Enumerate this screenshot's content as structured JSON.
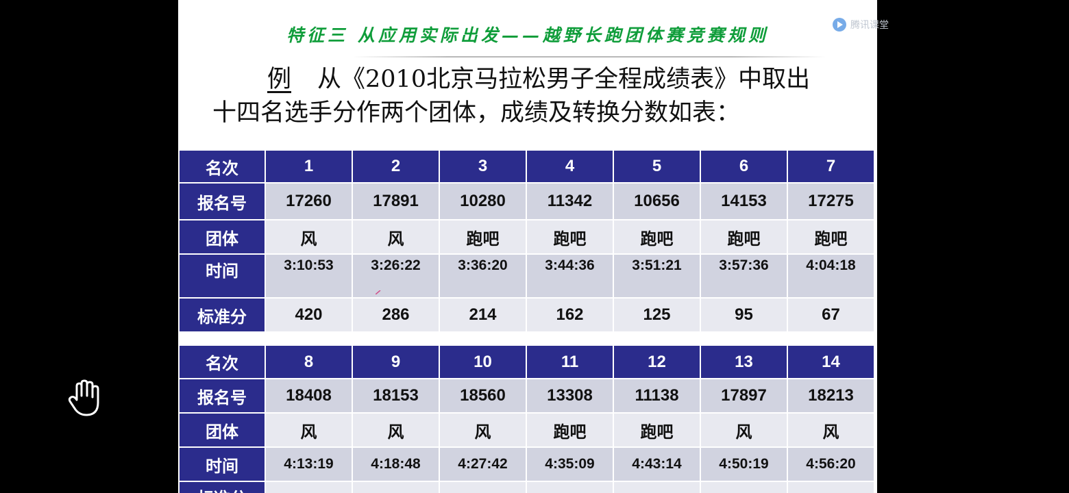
{
  "slide": {
    "heading": "特征三 从应用实际出发——越野长跑团体赛竞赛规则",
    "example_label": "例",
    "intro_line1": "从《2010北京马拉松男子全程成绩表》中取出",
    "intro_line2": "十四名选手分作两个团体，成绩及转换分数如表："
  },
  "watermark": {
    "text": "腾讯课堂",
    "icon": "play-logo-icon"
  },
  "overlay": {
    "hand_icon": "hand-icon",
    "accent_color": "#2b2c8c",
    "heading_color": "#0f9d3a"
  },
  "table1": {
    "header_labels": [
      "名次",
      "报名号",
      "团体",
      "时间",
      "标准分"
    ],
    "rank": [
      "1",
      "2",
      "3",
      "4",
      "5",
      "6",
      "7"
    ],
    "bib": [
      "17260",
      "17891",
      "10280",
      "11342",
      "10656",
      "14153",
      "17275"
    ],
    "team": [
      "风",
      "风",
      "跑吧",
      "跑吧",
      "跑吧",
      "跑吧",
      "跑吧"
    ],
    "time": [
      "3:10:53",
      "3:26:22",
      "3:36:20",
      "3:44:36",
      "3:51:21",
      "3:57:36",
      "4:04:18"
    ],
    "score": [
      "420",
      "286",
      "214",
      "162",
      "125",
      "95",
      "67"
    ]
  },
  "table2": {
    "header_labels": [
      "名次",
      "报名号",
      "团体",
      "时间",
      "标准分"
    ],
    "rank": [
      "8",
      "9",
      "10",
      "11",
      "12",
      "13",
      "14"
    ],
    "bib": [
      "18408",
      "18153",
      "18560",
      "13308",
      "11138",
      "17897",
      "18213"
    ],
    "team": [
      "风",
      "风",
      "风",
      "跑吧",
      "跑吧",
      "风",
      "风"
    ],
    "time": [
      "4:13:19",
      "4:18:48",
      "4:27:42",
      "4:35:09",
      "4:43:14",
      "4:50:19",
      "4:56:20"
    ]
  }
}
